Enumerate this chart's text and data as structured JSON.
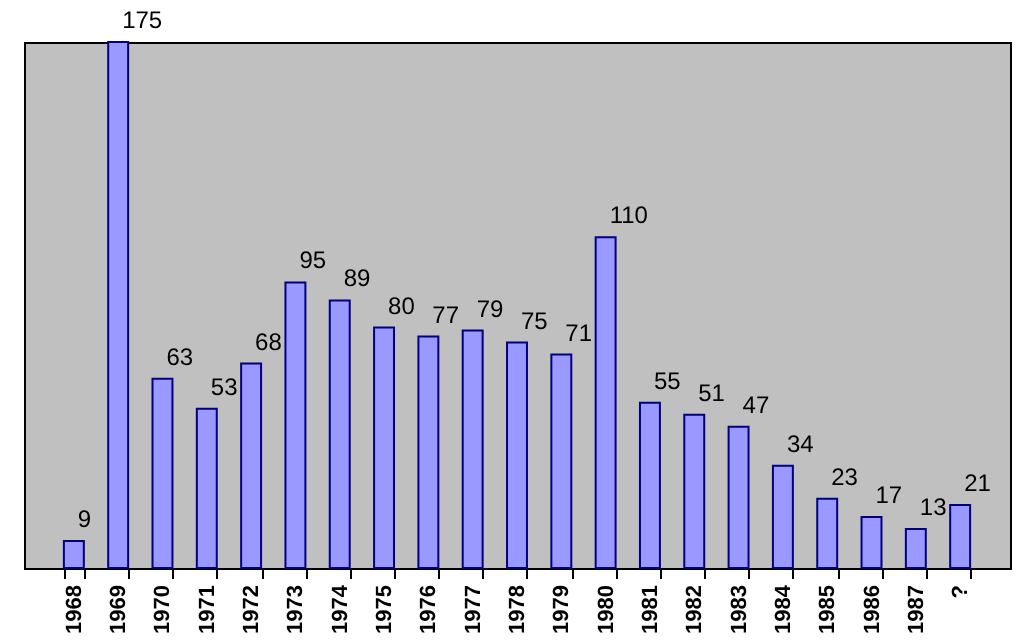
{
  "chart_data": {
    "type": "bar",
    "categories": [
      "1968",
      "1969",
      "1970",
      "1971",
      "1972",
      "1973",
      "1974",
      "1975",
      "1976",
      "1977",
      "1978",
      "1979",
      "1980",
      "1981",
      "1982",
      "1983",
      "1984",
      "1985",
      "1986",
      "1987",
      "?"
    ],
    "values": [
      9,
      175,
      63,
      53,
      68,
      95,
      89,
      80,
      77,
      79,
      75,
      71,
      110,
      55,
      51,
      47,
      34,
      23,
      17,
      13,
      21
    ],
    "color": "#9999ff",
    "data_labels": true,
    "grid": false
  }
}
